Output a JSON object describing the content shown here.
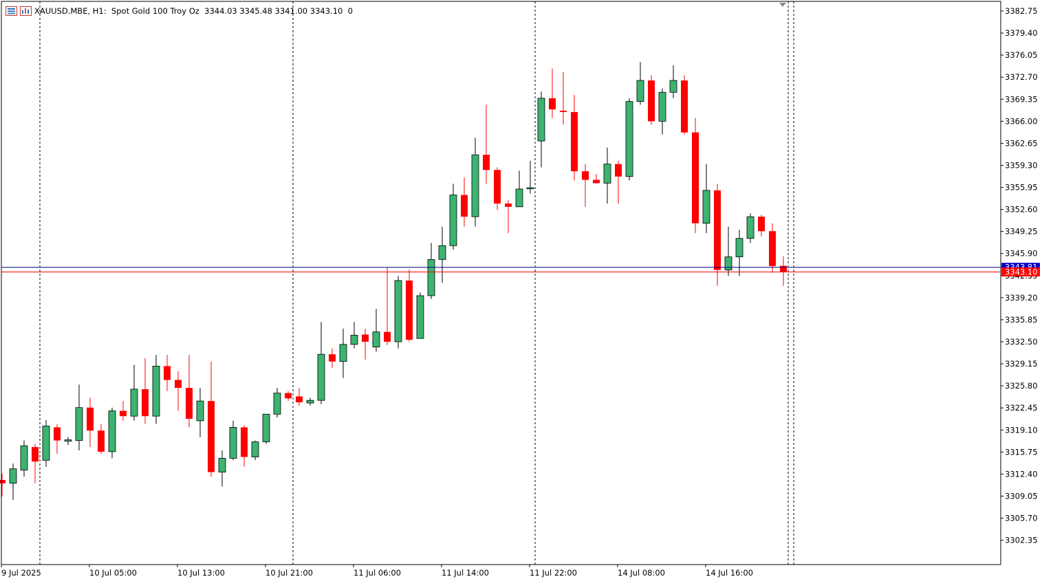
{
  "header": {
    "symbol_line": "XAUUSD.MBE, H1:  Spot Gold 100 Troy Oz",
    "ohlc": "3344.03 3345.48 3341.00 3343.10",
    "extra": "0"
  },
  "colors": {
    "bull": "#3cb371",
    "bear": "#ff0000",
    "ask_line": "#000080",
    "bid_line": "#ff0000",
    "ask_label_bg": "#0000c8",
    "bid_label_bg": "#ff0000",
    "grid_sep": "#000000"
  },
  "price_labels": {
    "ask": "3343.81",
    "bid": "3343.10"
  },
  "chart_data": {
    "type": "candlestick",
    "symbol": "XAUUSD.MBE",
    "timeframe": "H1",
    "y_ticks": [
      "3382.75",
      "3379.40",
      "3376.05",
      "3372.70",
      "3369.35",
      "3366.00",
      "3362.65",
      "3359.30",
      "3355.95",
      "3352.60",
      "3349.25",
      "3345.90",
      "3342.55",
      "3339.20",
      "3335.85",
      "3332.50",
      "3329.15",
      "3325.80",
      "3322.45",
      "3319.10",
      "3315.75",
      "3312.40",
      "3309.05",
      "3305.70",
      "3302.35"
    ],
    "x_ticks": [
      "9 Jul 2025",
      "10 Jul 05:00",
      "10 Jul 13:00",
      "10 Jul 21:00",
      "11 Jul 06:00",
      "11 Jul 14:00",
      "11 Jul 22:00",
      "14 Jul 08:00",
      "14 Jul 16:00"
    ],
    "period_separators_after_index": [
      3,
      26,
      48,
      71
    ],
    "ask": 3343.81,
    "bid": 3343.1,
    "candles": [
      [
        3311.5,
        3312.5,
        3309.0,
        3311.0
      ],
      [
        3311.0,
        3314.0,
        3308.5,
        3313.2
      ],
      [
        3313.0,
        3317.5,
        3312.0,
        3316.7
      ],
      [
        3316.5,
        3317.0,
        3311.0,
        3314.3
      ],
      [
        3314.5,
        3320.6,
        3313.5,
        3319.7
      ],
      [
        3319.5,
        3320.0,
        3315.5,
        3317.5
      ],
      [
        3317.4,
        3318.0,
        3316.8,
        3317.6
      ],
      [
        3317.5,
        3326.0,
        3316.0,
        3322.5
      ],
      [
        3322.5,
        3324.0,
        3316.5,
        3319.0
      ],
      [
        3319.0,
        3320.0,
        3315.5,
        3315.8
      ],
      [
        3315.8,
        3322.5,
        3314.8,
        3322.0
      ],
      [
        3322.0,
        3323.5,
        3320.5,
        3321.2
      ],
      [
        3321.2,
        3329.0,
        3320.5,
        3325.3
      ],
      [
        3325.3,
        3330.0,
        3320.0,
        3321.2
      ],
      [
        3321.2,
        3330.5,
        3320.0,
        3328.8
      ],
      [
        3328.8,
        3330.5,
        3325.0,
        3326.7
      ],
      [
        3326.7,
        3328.0,
        3322.0,
        3325.5
      ],
      [
        3325.5,
        3330.5,
        3319.5,
        3320.8
      ],
      [
        3320.5,
        3325.5,
        3318.0,
        3323.5
      ],
      [
        3323.5,
        3329.5,
        3312.0,
        3312.7
      ],
      [
        3312.7,
        3316.0,
        3310.5,
        3314.8
      ],
      [
        3314.8,
        3320.5,
        3314.5,
        3319.5
      ],
      [
        3319.5,
        3319.8,
        3313.5,
        3315.0
      ],
      [
        3315.0,
        3317.5,
        3314.5,
        3317.3
      ],
      [
        3317.3,
        3321.5,
        3317.0,
        3321.5
      ],
      [
        3321.5,
        3325.5,
        3321.0,
        3324.7
      ],
      [
        3324.7,
        3325.0,
        3323.5,
        3323.9
      ],
      [
        3324.2,
        3325.5,
        3322.8,
        3323.3
      ],
      [
        3323.2,
        3324.0,
        3322.8,
        3323.6
      ],
      [
        3323.6,
        3335.5,
        3323.0,
        3330.6
      ],
      [
        3330.6,
        3331.5,
        3328.5,
        3329.5
      ],
      [
        3329.5,
        3334.5,
        3327.0,
        3332.1
      ],
      [
        3332.1,
        3335.5,
        3331.5,
        3333.5
      ],
      [
        3333.6,
        3334.5,
        3329.8,
        3332.5
      ],
      [
        3331.7,
        3337.5,
        3331.0,
        3334.0
      ],
      [
        3334.0,
        3343.8,
        3332.0,
        3332.5
      ],
      [
        3332.5,
        3342.5,
        3331.5,
        3341.8
      ],
      [
        3341.8,
        3343.5,
        3332.5,
        3332.8
      ],
      [
        3333.0,
        3340.0,
        3333.0,
        3339.5
      ],
      [
        3339.5,
        3347.5,
        3339.0,
        3345.0
      ],
      [
        3345.0,
        3350.0,
        3341.5,
        3347.1
      ],
      [
        3347.1,
        3356.5,
        3346.5,
        3354.8
      ],
      [
        3354.8,
        3357.5,
        3350.0,
        3351.5
      ],
      [
        3351.5,
        3363.5,
        3350.0,
        3360.9
      ],
      [
        3360.9,
        3368.5,
        3356.5,
        3358.6
      ],
      [
        3358.6,
        3359.0,
        3352.5,
        3353.5
      ],
      [
        3353.5,
        3354.0,
        3349.0,
        3353.0
      ],
      [
        3353.0,
        3358.5,
        3353.0,
        3355.7
      ],
      [
        3355.8,
        3360.0,
        3355.0,
        3355.9
      ],
      [
        3363.0,
        3370.5,
        3359.0,
        3369.5
      ],
      [
        3369.5,
        3374.0,
        3366.5,
        3367.8
      ],
      [
        3367.6,
        3373.5,
        3365.5,
        3367.4
      ],
      [
        3367.4,
        3370.0,
        3357.0,
        3358.4
      ],
      [
        3358.4,
        3359.5,
        3353.0,
        3357.1
      ],
      [
        3357.1,
        3358.0,
        3356.5,
        3356.6
      ],
      [
        3356.6,
        3362.0,
        3353.5,
        3359.5
      ],
      [
        3359.5,
        3360.0,
        3353.5,
        3357.6
      ],
      [
        3357.6,
        3369.5,
        3357.0,
        3369.0
      ],
      [
        3369.0,
        3375.0,
        3368.5,
        3372.2
      ],
      [
        3372.2,
        3373.0,
        3365.5,
        3366.0
      ],
      [
        3366.0,
        3371.0,
        3364.0,
        3370.4
      ],
      [
        3370.4,
        3374.5,
        3369.5,
        3372.2
      ],
      [
        3372.2,
        3373.0,
        3364.0,
        3364.3
      ],
      [
        3364.3,
        3366.5,
        3349.0,
        3350.5
      ],
      [
        3350.5,
        3359.5,
        3349.0,
        3355.5
      ],
      [
        3355.5,
        3356.5,
        3341.0,
        3343.4
      ],
      [
        3343.4,
        3350.0,
        3342.5,
        3345.4
      ],
      [
        3345.4,
        3349.5,
        3342.5,
        3348.2
      ],
      [
        3348.2,
        3352.0,
        3347.5,
        3351.5
      ],
      [
        3351.5,
        3351.8,
        3348.5,
        3349.3
      ],
      [
        3349.3,
        3350.5,
        3343.0,
        3344.0
      ],
      [
        3344.03,
        3345.48,
        3341.0,
        3343.1
      ]
    ]
  }
}
